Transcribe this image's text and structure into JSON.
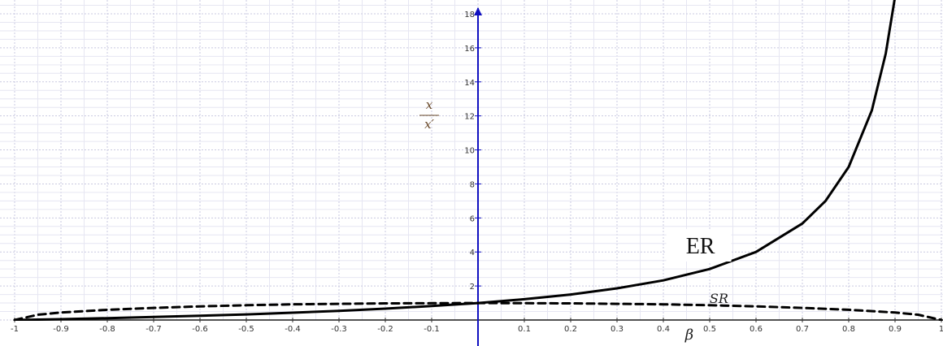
{
  "chart_data": {
    "type": "line",
    "xlabel": "β",
    "ylabel_num": "x",
    "ylabel_den": "x′",
    "xlim": [
      -1,
      1
    ],
    "ylim": [
      0,
      18
    ],
    "grid": true,
    "x_ticks": [
      "-1",
      "-0.9",
      "-0.8",
      "-0.7",
      "-0.6",
      "-0.5",
      "-0.4",
      "-0.3",
      "-0.2",
      "-0.1",
      "0.1",
      "0.2",
      "0.3",
      "0.4",
      "0.5",
      "0.6",
      "0.7",
      "0.8",
      "0.9",
      "1"
    ],
    "x_tick_values": [
      -1,
      -0.9,
      -0.8,
      -0.7,
      -0.6,
      -0.5,
      -0.4,
      -0.3,
      -0.2,
      -0.1,
      0.1,
      0.2,
      0.3,
      0.4,
      0.5,
      0.6,
      0.7,
      0.8,
      0.9,
      1
    ],
    "y_ticks": [
      "2",
      "4",
      "6",
      "8",
      "10",
      "12",
      "14",
      "16",
      "18"
    ],
    "y_tick_values": [
      2,
      4,
      6,
      8,
      10,
      12,
      14,
      16,
      18
    ],
    "series": [
      {
        "name": "ER",
        "style": "solid",
        "color": "#000000",
        "x": [
          -1,
          -0.9,
          -0.8,
          -0.7,
          -0.6,
          -0.5,
          -0.4,
          -0.3,
          -0.2,
          -0.1,
          0,
          0.1,
          0.2,
          0.3,
          0.4,
          0.5,
          0.6,
          0.7,
          0.75,
          0.8,
          0.85,
          0.88,
          0.9
        ],
        "y": [
          0,
          0.05,
          0.11,
          0.18,
          0.25,
          0.33,
          0.43,
          0.54,
          0.67,
          0.82,
          1,
          1.22,
          1.5,
          1.86,
          2.33,
          3,
          4,
          5.67,
          7,
          9,
          12.33,
          15.67,
          19
        ]
      },
      {
        "name": "SR",
        "style": "dashed",
        "color": "#000000",
        "x": [
          -1,
          -0.95,
          -0.9,
          -0.8,
          -0.7,
          -0.6,
          -0.5,
          -0.4,
          -0.3,
          -0.2,
          -0.1,
          0,
          0.1,
          0.2,
          0.3,
          0.4,
          0.5,
          0.6,
          0.7,
          0.8,
          0.9,
          0.95,
          1
        ],
        "y": [
          0,
          0.31,
          0.44,
          0.6,
          0.71,
          0.8,
          0.87,
          0.92,
          0.95,
          0.98,
          0.99,
          1,
          0.99,
          0.98,
          0.95,
          0.92,
          0.87,
          0.8,
          0.71,
          0.6,
          0.44,
          0.31,
          0
        ]
      }
    ],
    "annotations": [
      {
        "text": "ER",
        "x": 0.48,
        "y": 4.2
      },
      {
        "text": "SR",
        "x": 0.52,
        "y": 1.3
      }
    ]
  }
}
